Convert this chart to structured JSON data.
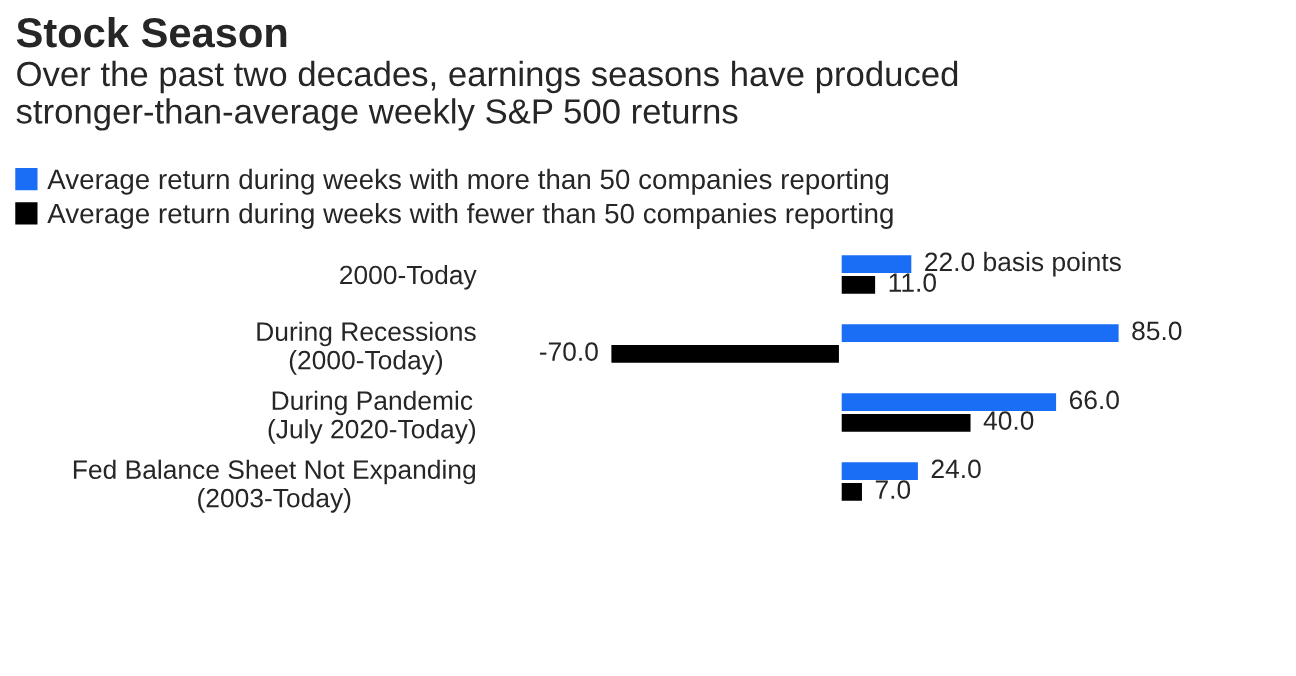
{
  "chart_data": {
    "type": "bar",
    "orientation": "horizontal",
    "title": "Stock Season",
    "subtitle": "Over the past two decades, earnings seasons have produced stronger-than-average weekly S&P 500 returns",
    "categories": [
      "2000-Today",
      "During Recessions\n(2000-Today)",
      "During Pandemic\n(July 2020-Today)",
      "Fed Balance Sheet Not Expanding\n(2003-Today)"
    ],
    "series": [
      {
        "name": "Average return during weeks with more than 50 companies reporting",
        "color": "#1a6ef5",
        "values": [
          22.0,
          85.0,
          66.0,
          24.0
        ],
        "value_labels": [
          "22.0 basis points",
          "85.0",
          "66.0",
          "24.0"
        ]
      },
      {
        "name": "Average return during weeks with fewer than 50 companies reporting",
        "color": "#000000",
        "values": [
          11.0,
          -70.0,
          40.0,
          7.0
        ],
        "value_labels": [
          "11.0",
          "-70.0",
          "40.0",
          "7.0"
        ]
      }
    ],
    "xlim": [
      -70,
      85
    ],
    "tick_labels": "y",
    "legend": "top left",
    "grid": false
  }
}
